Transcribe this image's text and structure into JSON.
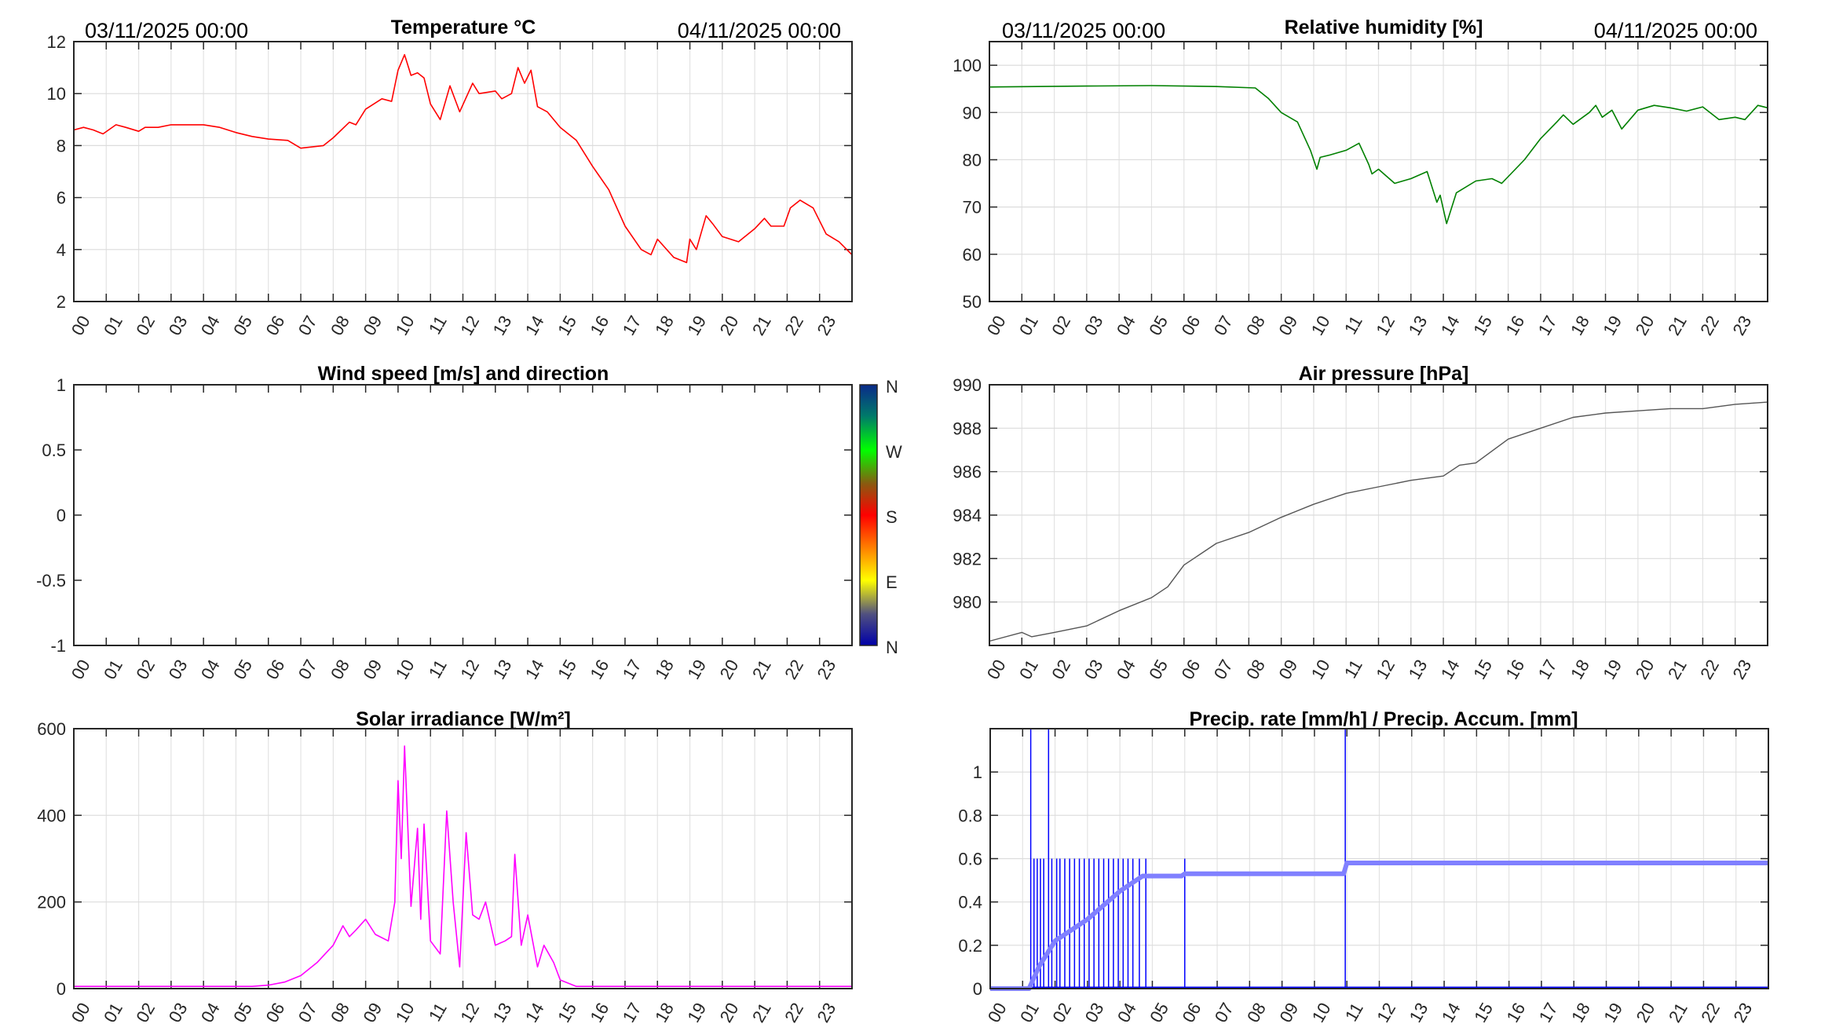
{
  "header": {
    "start_label": "03/11/2025 00:00",
    "end_label": "04/11/2025 00:00"
  },
  "colorbar": {
    "labels": [
      "N",
      "W",
      "S",
      "E",
      "N"
    ]
  },
  "hour_labels": [
    "00",
    "01",
    "02",
    "03",
    "04",
    "05",
    "06",
    "07",
    "08",
    "09",
    "10",
    "11",
    "12",
    "13",
    "14",
    "15",
    "16",
    "17",
    "18",
    "19",
    "20",
    "21",
    "22",
    "23"
  ],
  "chart_data": [
    {
      "id": "temperature",
      "type": "line",
      "title": "Temperature °C",
      "xlim": [
        0,
        24
      ],
      "ylim": [
        2,
        12
      ],
      "yticks": [
        2,
        4,
        6,
        8,
        10,
        12
      ],
      "grid": true,
      "series": [
        {
          "name": "Temperature",
          "color": "#ff0000",
          "width": 1.6,
          "points": [
            [
              0,
              8.6
            ],
            [
              0.3,
              8.7
            ],
            [
              0.6,
              8.6
            ],
            [
              0.9,
              8.45
            ],
            [
              1.3,
              8.8
            ],
            [
              1.6,
              8.7
            ],
            [
              2,
              8.55
            ],
            [
              2.2,
              8.7
            ],
            [
              2.6,
              8.7
            ],
            [
              3,
              8.8
            ],
            [
              4,
              8.8
            ],
            [
              4.5,
              8.7
            ],
            [
              5,
              8.5
            ],
            [
              5.5,
              8.35
            ],
            [
              6,
              8.25
            ],
            [
              6.6,
              8.2
            ],
            [
              7,
              7.9
            ],
            [
              7.7,
              8.0
            ],
            [
              8,
              8.3
            ],
            [
              8.5,
              8.9
            ],
            [
              8.7,
              8.8
            ],
            [
              9,
              9.4
            ],
            [
              9.5,
              9.8
            ],
            [
              9.8,
              9.7
            ],
            [
              10,
              10.9
            ],
            [
              10.2,
              11.5
            ],
            [
              10.4,
              10.7
            ],
            [
              10.6,
              10.8
            ],
            [
              10.8,
              10.6
            ],
            [
              11,
              9.6
            ],
            [
              11.3,
              9.0
            ],
            [
              11.6,
              10.3
            ],
            [
              11.9,
              9.3
            ],
            [
              12.3,
              10.4
            ],
            [
              12.5,
              10.0
            ],
            [
              13,
              10.1
            ],
            [
              13.2,
              9.8
            ],
            [
              13.5,
              10.0
            ],
            [
              13.7,
              11.0
            ],
            [
              13.9,
              10.4
            ],
            [
              14.1,
              10.9
            ],
            [
              14.3,
              9.5
            ],
            [
              14.6,
              9.3
            ],
            [
              15,
              8.7
            ],
            [
              15.5,
              8.2
            ],
            [
              16,
              7.2
            ],
            [
              16.5,
              6.3
            ],
            [
              17,
              4.9
            ],
            [
              17.5,
              4.0
            ],
            [
              17.8,
              3.8
            ],
            [
              18,
              4.4
            ],
            [
              18.5,
              3.7
            ],
            [
              18.9,
              3.5
            ],
            [
              19,
              4.4
            ],
            [
              19.2,
              4.0
            ],
            [
              19.5,
              5.3
            ],
            [
              19.7,
              5.0
            ],
            [
              20,
              4.5
            ],
            [
              20.5,
              4.3
            ],
            [
              21,
              4.8
            ],
            [
              21.3,
              5.2
            ],
            [
              21.5,
              4.9
            ],
            [
              21.9,
              4.9
            ],
            [
              22.1,
              5.6
            ],
            [
              22.4,
              5.9
            ],
            [
              22.8,
              5.6
            ],
            [
              23.2,
              4.6
            ],
            [
              23.6,
              4.3
            ],
            [
              24,
              3.8
            ]
          ]
        }
      ]
    },
    {
      "id": "humidity",
      "type": "line",
      "title": "Relative humidity [%]",
      "xlim": [
        0,
        24
      ],
      "ylim": [
        50,
        105
      ],
      "yticks": [
        50,
        60,
        70,
        80,
        90,
        100
      ],
      "grid": true,
      "series": [
        {
          "name": "Relative humidity",
          "color": "#008000",
          "width": 1.6,
          "points": [
            [
              0,
              95.4
            ],
            [
              3,
              95.6
            ],
            [
              5,
              95.7
            ],
            [
              7,
              95.5
            ],
            [
              8.2,
              95.2
            ],
            [
              8.6,
              93
            ],
            [
              9,
              90
            ],
            [
              9.5,
              88
            ],
            [
              9.9,
              82
            ],
            [
              10.1,
              78
            ],
            [
              10.2,
              80.5
            ],
            [
              10.5,
              81
            ],
            [
              11,
              82
            ],
            [
              11.4,
              83.5
            ],
            [
              11.7,
              79
            ],
            [
              11.8,
              77
            ],
            [
              12,
              78
            ],
            [
              12.5,
              75
            ],
            [
              13,
              76
            ],
            [
              13.5,
              77.5
            ],
            [
              13.8,
              71
            ],
            [
              13.9,
              72.5
            ],
            [
              14.1,
              66.5
            ],
            [
              14.4,
              73
            ],
            [
              15,
              75.5
            ],
            [
              15.5,
              76
            ],
            [
              15.8,
              75
            ],
            [
              16.5,
              80
            ],
            [
              17,
              84.5
            ],
            [
              17.5,
              88
            ],
            [
              17.7,
              89.5
            ],
            [
              18,
              87.5
            ],
            [
              18.5,
              90
            ],
            [
              18.7,
              91.5
            ],
            [
              18.9,
              89
            ],
            [
              19.2,
              90.5
            ],
            [
              19.5,
              86.5
            ],
            [
              20,
              90.5
            ],
            [
              20.5,
              91.5
            ],
            [
              21,
              91
            ],
            [
              21.5,
              90.3
            ],
            [
              22,
              91.2
            ],
            [
              22.5,
              88.5
            ],
            [
              23,
              89
            ],
            [
              23.3,
              88.5
            ],
            [
              23.7,
              91.5
            ],
            [
              24,
              91
            ]
          ]
        }
      ]
    },
    {
      "id": "wind",
      "type": "line",
      "title": "Wind speed [m/s] and direction",
      "xlim": [
        0,
        24
      ],
      "ylim": [
        -1,
        1
      ],
      "yticks": [
        -1,
        -0.5,
        0,
        0.5,
        1
      ],
      "grid": false,
      "series": []
    },
    {
      "id": "pressure",
      "type": "line",
      "title": "Air pressure [hPa]",
      "xlim": [
        0,
        24
      ],
      "ylim": [
        978,
        990
      ],
      "yticks": [
        980,
        982,
        984,
        986,
        988,
        990
      ],
      "grid": true,
      "series": [
        {
          "name": "Air pressure",
          "color": "#555555",
          "width": 1.4,
          "points": [
            [
              0,
              978.2
            ],
            [
              1,
              978.6
            ],
            [
              1.3,
              978.4
            ],
            [
              2,
              978.6
            ],
            [
              3,
              978.9
            ],
            [
              4,
              979.6
            ],
            [
              5,
              980.2
            ],
            [
              5.5,
              980.7
            ],
            [
              6,
              981.7
            ],
            [
              7,
              982.7
            ],
            [
              8,
              983.2
            ],
            [
              9,
              983.9
            ],
            [
              10,
              984.5
            ],
            [
              11,
              985.0
            ],
            [
              12,
              985.3
            ],
            [
              13,
              985.6
            ],
            [
              14,
              985.8
            ],
            [
              14.5,
              986.3
            ],
            [
              15,
              986.4
            ],
            [
              16,
              987.5
            ],
            [
              17,
              988.0
            ],
            [
              18,
              988.5
            ],
            [
              19,
              988.7
            ],
            [
              20,
              988.8
            ],
            [
              21,
              988.9
            ],
            [
              22,
              988.9
            ],
            [
              23,
              989.1
            ],
            [
              24,
              989.2
            ]
          ]
        }
      ]
    },
    {
      "id": "solar",
      "type": "line",
      "title": "Solar irradiance [W/m²]",
      "xlim": [
        0,
        24
      ],
      "ylim": [
        0,
        600
      ],
      "yticks": [
        0,
        200,
        400,
        600
      ],
      "grid": true,
      "series": [
        {
          "name": "Solar irradiance",
          "color": "#ff00ff",
          "width": 1.6,
          "points": [
            [
              0,
              5
            ],
            [
              5.5,
              5
            ],
            [
              6,
              8
            ],
            [
              6.5,
              15
            ],
            [
              7,
              30
            ],
            [
              7.5,
              60
            ],
            [
              8,
              100
            ],
            [
              8.3,
              145
            ],
            [
              8.5,
              120
            ],
            [
              8.7,
              135
            ],
            [
              9,
              160
            ],
            [
              9.3,
              125
            ],
            [
              9.7,
              110
            ],
            [
              9.9,
              200
            ],
            [
              10,
              480
            ],
            [
              10.1,
              300
            ],
            [
              10.2,
              560
            ],
            [
              10.4,
              190
            ],
            [
              10.6,
              370
            ],
            [
              10.7,
              160
            ],
            [
              10.8,
              380
            ],
            [
              11,
              110
            ],
            [
              11.3,
              80
            ],
            [
              11.5,
              410
            ],
            [
              11.7,
              200
            ],
            [
              11.9,
              50
            ],
            [
              12.1,
              360
            ],
            [
              12.3,
              170
            ],
            [
              12.5,
              160
            ],
            [
              12.7,
              200
            ],
            [
              13,
              100
            ],
            [
              13.3,
              110
            ],
            [
              13.5,
              120
            ],
            [
              13.6,
              310
            ],
            [
              13.8,
              100
            ],
            [
              14,
              170
            ],
            [
              14.3,
              50
            ],
            [
              14.5,
              100
            ],
            [
              14.8,
              60
            ],
            [
              15,
              20
            ],
            [
              15.5,
              5
            ],
            [
              24,
              5
            ]
          ]
        }
      ]
    },
    {
      "id": "precip",
      "type": "line",
      "title": "Precip. rate [mm/h] / Precip. Accum. [mm]",
      "xlim": [
        0,
        24
      ],
      "ylim": [
        0,
        1.2
      ],
      "yticks": [
        0,
        0.2,
        0.4,
        0.6,
        0.8,
        1
      ],
      "grid": true,
      "series": [
        {
          "name": "Precip. rate",
          "color": "#0000ff",
          "width": 1.5,
          "style": "spikes",
          "points": [
            [
              1.25,
              1.2
            ],
            [
              1.35,
              0.6
            ],
            [
              1.45,
              0.6
            ],
            [
              1.55,
              0.6
            ],
            [
              1.65,
              0.6
            ],
            [
              1.8,
              1.2
            ],
            [
              1.9,
              0.6
            ],
            [
              2.05,
              0.6
            ],
            [
              2.15,
              0.6
            ],
            [
              2.3,
              0.6
            ],
            [
              2.45,
              0.6
            ],
            [
              2.6,
              0.6
            ],
            [
              2.75,
              0.6
            ],
            [
              2.9,
              0.6
            ],
            [
              3.05,
              0.6
            ],
            [
              3.2,
              0.6
            ],
            [
              3.35,
              0.6
            ],
            [
              3.5,
              0.6
            ],
            [
              3.65,
              0.6
            ],
            [
              3.8,
              0.6
            ],
            [
              3.95,
              0.6
            ],
            [
              4.1,
              0.6
            ],
            [
              4.25,
              0.6
            ],
            [
              4.4,
              0.6
            ],
            [
              4.6,
              0.6
            ],
            [
              4.8,
              0.6
            ],
            [
              6.0,
              0.6
            ],
            [
              10.95,
              1.2
            ]
          ]
        },
        {
          "name": "Precip. Accum.",
          "color": "#8080ff",
          "width": 6,
          "points": [
            [
              0,
              0
            ],
            [
              1.2,
              0
            ],
            [
              1.5,
              0.1
            ],
            [
              2,
              0.22
            ],
            [
              3,
              0.32
            ],
            [
              4,
              0.45
            ],
            [
              4.7,
              0.52
            ],
            [
              5.9,
              0.52
            ],
            [
              6,
              0.53
            ],
            [
              10.9,
              0.53
            ],
            [
              11,
              0.58
            ],
            [
              24,
              0.58
            ]
          ]
        }
      ]
    }
  ]
}
